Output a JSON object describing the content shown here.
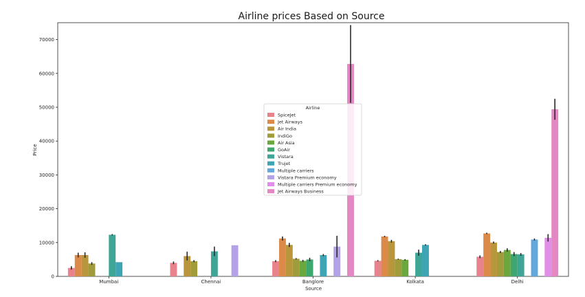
{
  "chart_data": {
    "type": "bar",
    "title": "Airline prices Based on Source",
    "xlabel": "Source",
    "ylabel": "Price",
    "ylim": [
      0,
      75000
    ],
    "yticks": [
      0,
      10000,
      20000,
      30000,
      40000,
      50000,
      60000,
      70000
    ],
    "categories": [
      "Mumbai",
      "Chennai",
      "Banglore",
      "Kolkata",
      "Delhi"
    ],
    "legend": {
      "title": "Airline",
      "placement": "center"
    },
    "series": [
      {
        "name": "SpiceJet",
        "color": "#e8838e",
        "values": [
          2500,
          4000,
          4500,
          4600,
          5800
        ],
        "errors": [
          500,
          400,
          300,
          200,
          400
        ]
      },
      {
        "name": "Jet Airways",
        "color": "#db8a4a",
        "values": [
          6300,
          null,
          11200,
          11800,
          12700
        ],
        "errors": [
          700,
          null,
          600,
          200,
          200
        ]
      },
      {
        "name": "Air India",
        "color": "#b9963b",
        "values": [
          6300,
          6000,
          9300,
          10400,
          10000
        ],
        "errors": [
          800,
          1300,
          600,
          400,
          300
        ]
      },
      {
        "name": "IndiGo",
        "color": "#a19c3b",
        "values": [
          3800,
          4500,
          5200,
          5100,
          7200
        ],
        "errors": [
          400,
          300,
          200,
          150,
          300
        ]
      },
      {
        "name": "Air Asia",
        "color": "#6aa83d",
        "values": [
          null,
          null,
          4600,
          4900,
          7800
        ],
        "errors": [
          null,
          null,
          300,
          200,
          500
        ]
      },
      {
        "name": "GoAir",
        "color": "#3ea66f",
        "values": [
          null,
          null,
          5000,
          null,
          6600
        ],
        "errors": [
          null,
          null,
          500,
          null,
          600
        ]
      },
      {
        "name": "Vistara",
        "color": "#3fa596",
        "values": [
          12300,
          7400,
          null,
          7000,
          6500
        ],
        "errors": [
          200,
          1400,
          null,
          900,
          400
        ]
      },
      {
        "name": "Trujet",
        "color": "#3ea5b4",
        "values": [
          4200,
          null,
          6300,
          9300,
          null
        ],
        "errors": [
          0,
          null,
          300,
          200,
          null
        ]
      },
      {
        "name": "Multiple carriers",
        "color": "#62a8dc",
        "values": [
          null,
          null,
          null,
          null,
          10900
        ],
        "errors": [
          null,
          null,
          null,
          null,
          300
        ]
      },
      {
        "name": "Vistara Premium economy",
        "color": "#b3a2e8",
        "values": [
          null,
          9200,
          8800,
          null,
          null
        ],
        "errors": [
          null,
          0,
          3200,
          null,
          null
        ]
      },
      {
        "name": "Multiple carriers Premium economy",
        "color": "#e08ee8",
        "values": [
          null,
          null,
          null,
          null,
          11400
        ],
        "errors": [
          null,
          null,
          null,
          null,
          1100
        ]
      },
      {
        "name": "Jet Airways Business",
        "color": "#e488c3",
        "values": [
          null,
          null,
          62800,
          null,
          49400
        ],
        "errors": [
          null,
          null,
          11500,
          null,
          3100
        ]
      }
    ]
  }
}
